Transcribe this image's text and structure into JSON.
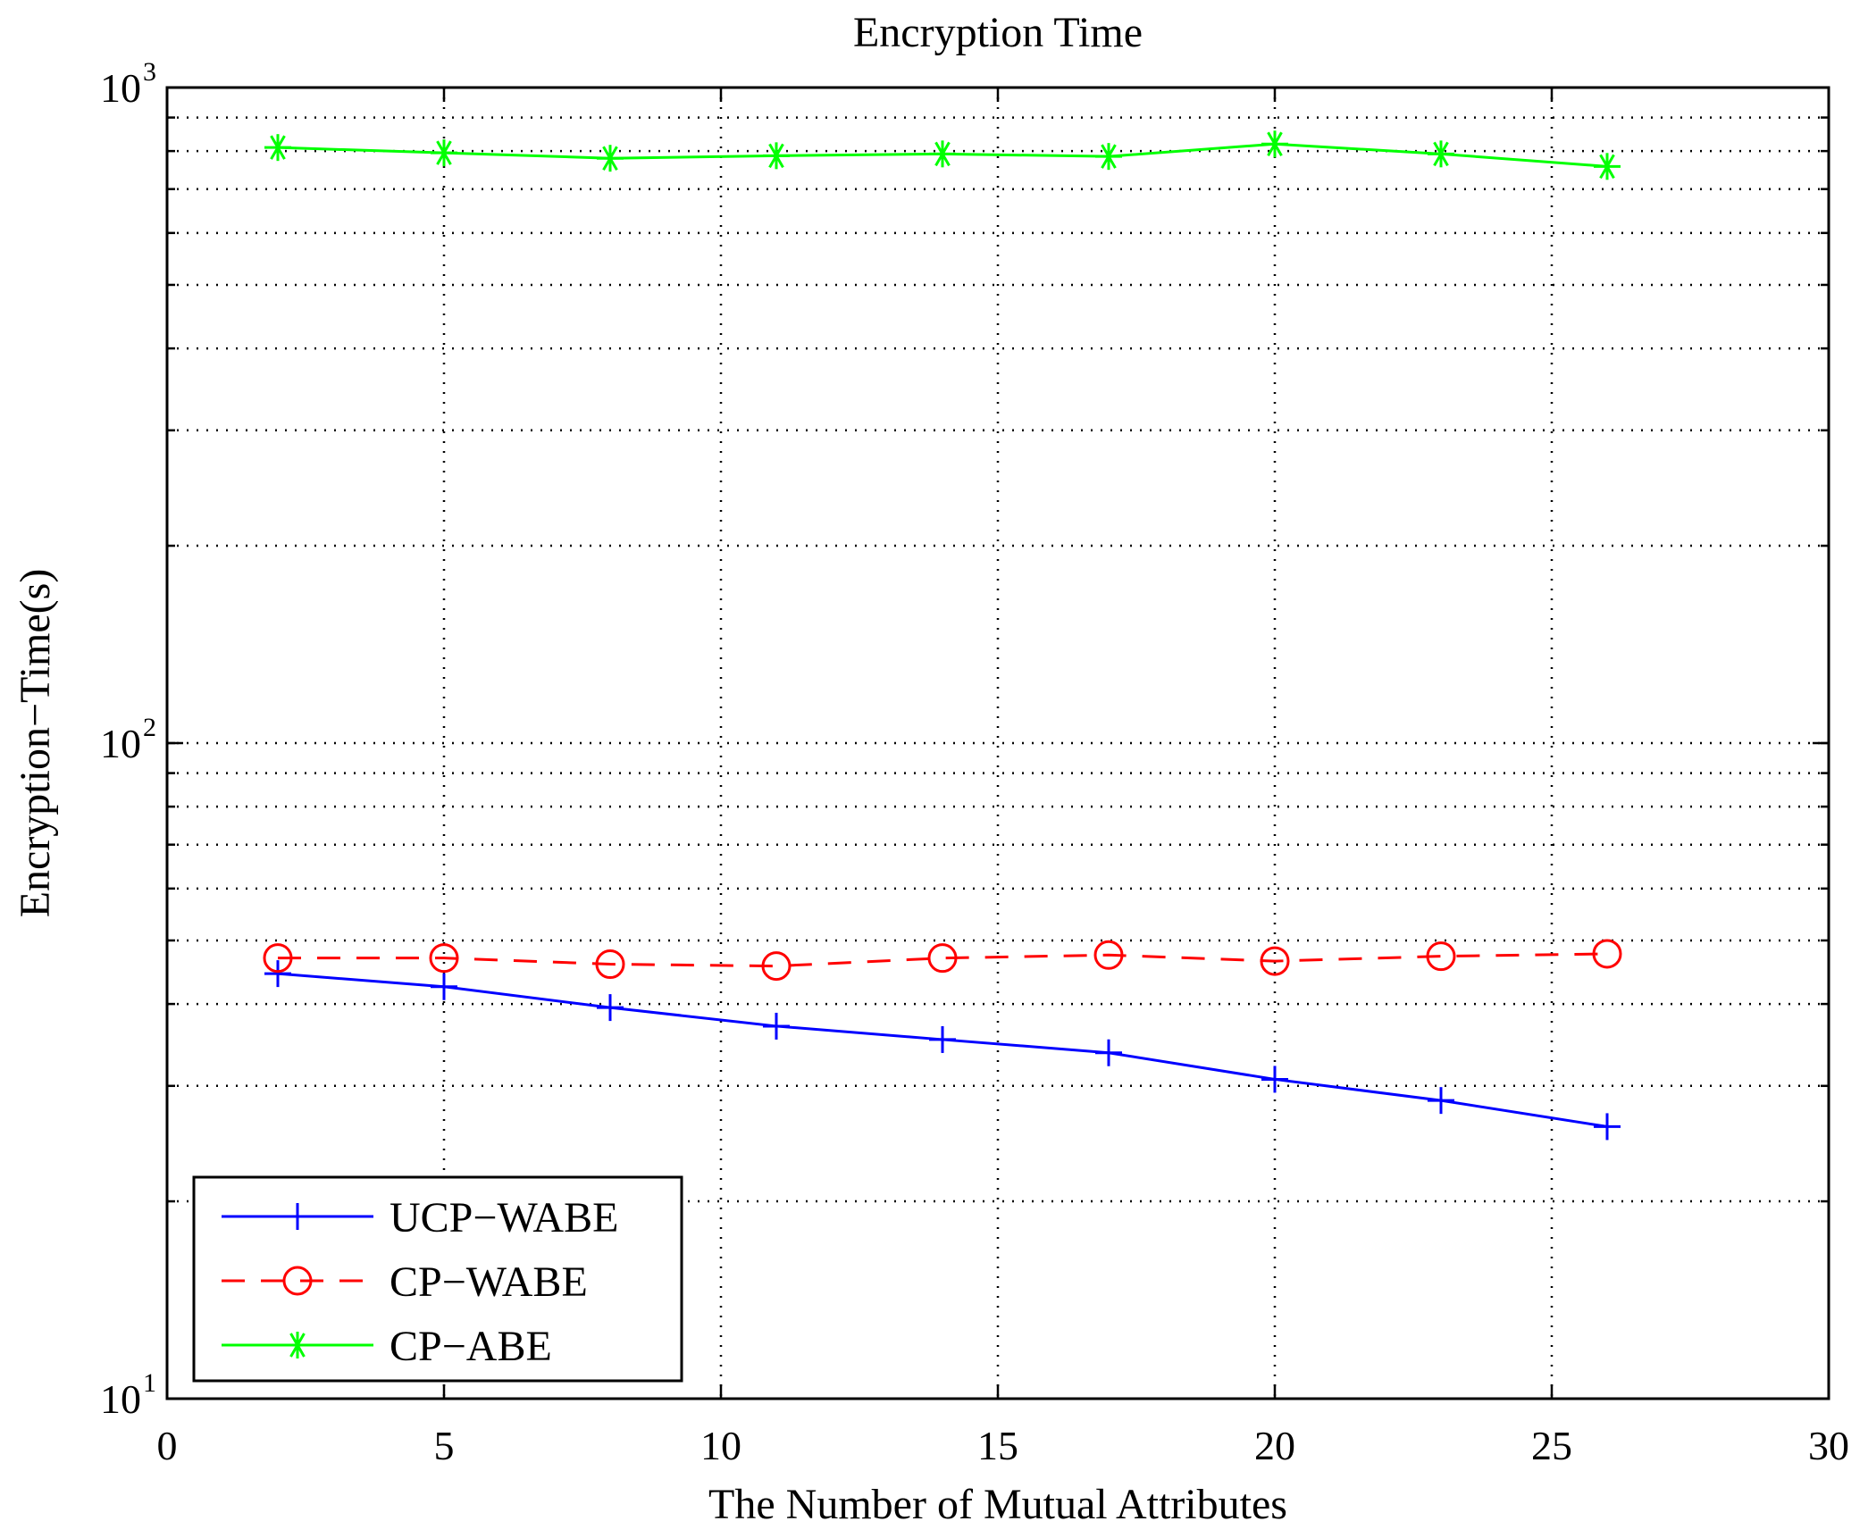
{
  "chart_data": {
    "type": "line",
    "title": "Encryption Time",
    "xlabel": "The Number of Mutual Attributes",
    "ylabel": "Encryption−Time(s)",
    "xlim": [
      0,
      30
    ],
    "ylim": [
      10,
      1000
    ],
    "yscale": "log",
    "grid": true,
    "xticks": [
      0,
      5,
      10,
      15,
      20,
      25,
      30
    ],
    "xtick_labels": [
      "0",
      "5",
      "10",
      "15",
      "20",
      "25",
      "30"
    ],
    "yticks": [
      {
        "value": 10,
        "base": "10",
        "exp": "1"
      },
      {
        "value": 100,
        "base": "10",
        "exp": "2"
      },
      {
        "value": 1000,
        "base": "10",
        "exp": "3"
      }
    ],
    "legend_position": "bottom-left",
    "x": [
      2,
      5,
      8,
      11,
      14,
      17,
      20,
      23,
      26
    ],
    "series": [
      {
        "name": "UCP−WABE",
        "color": "#0000ff",
        "line": "solid",
        "marker": "plus",
        "values": [
          44.5,
          42.5,
          39.5,
          37,
          35.3,
          33.7,
          30.7,
          28.5,
          26
        ]
      },
      {
        "name": "CP−WABE",
        "color": "#ff0000",
        "line": "dashed",
        "marker": "circle",
        "values": [
          47,
          47,
          46,
          45.7,
          47,
          47.5,
          46.5,
          47.3,
          47.7
        ]
      },
      {
        "name": "CP−ABE",
        "color": "#00ff00",
        "line": "solid",
        "marker": "asterisk",
        "values": [
          810,
          795,
          780,
          787,
          792,
          785,
          820,
          792,
          758
        ]
      }
    ]
  }
}
